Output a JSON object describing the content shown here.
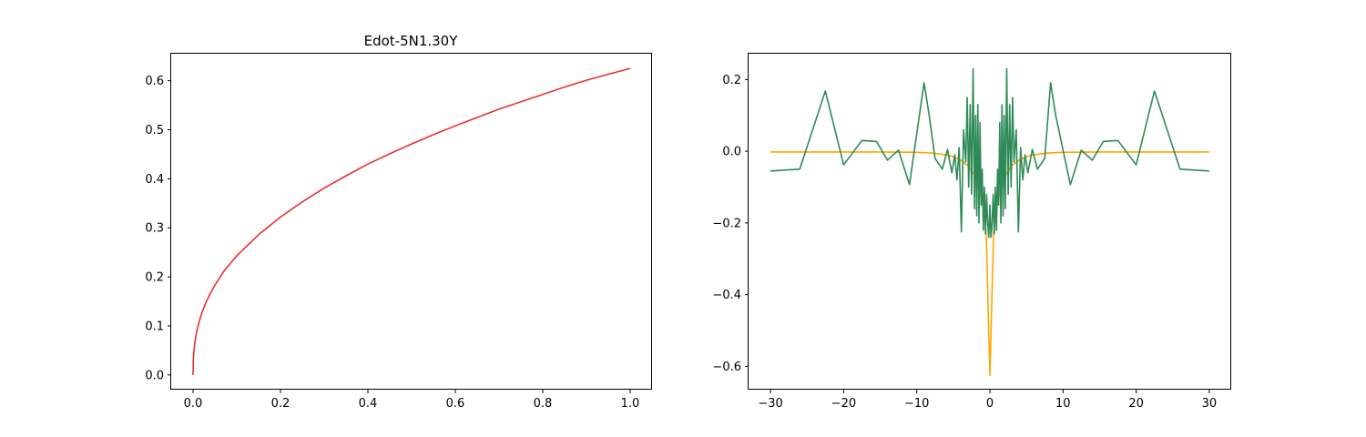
{
  "chart_data": [
    {
      "type": "line",
      "title": "Edot-5N1.30Y",
      "xlabel": "",
      "ylabel": "",
      "xlim": [
        -0.05,
        1.05
      ],
      "ylim": [
        -0.03,
        0.655
      ],
      "xticks": [
        "0.0",
        "0.2",
        "0.4",
        "0.6",
        "0.8",
        "1.0"
      ],
      "yticks": [
        "0.0",
        "0.1",
        "0.2",
        "0.3",
        "0.4",
        "0.5",
        "0.6"
      ],
      "grid": false,
      "series": [
        {
          "color": "#e8312f",
          "curve": "y = 0.625 * x^0.41",
          "x": [
            0,
            0.0005,
            0.001,
            0.002,
            0.004,
            0.006,
            0.01,
            0.015,
            0.02,
            0.03,
            0.04,
            0.05,
            0.07,
            0.1,
            0.15,
            0.2,
            0.25,
            0.3,
            0.35,
            0.4,
            0.45,
            0.5,
            0.55,
            0.6,
            0.65,
            0.7,
            0.75,
            0.8,
            0.85,
            0.9,
            0.95,
            1.0
          ],
          "y": [
            0,
            0.028,
            0.037,
            0.049,
            0.065,
            0.077,
            0.095,
            0.112,
            0.126,
            0.149,
            0.167,
            0.183,
            0.211,
            0.243,
            0.286,
            0.322,
            0.353,
            0.381,
            0.406,
            0.43,
            0.451,
            0.471,
            0.49,
            0.508,
            0.525,
            0.542,
            0.557,
            0.572,
            0.587,
            0.601,
            0.613,
            0.625
          ]
        }
      ]
    },
    {
      "type": "line",
      "title": "",
      "xlabel": "",
      "ylabel": "",
      "xlim": [
        -33,
        33
      ],
      "ylim": [
        -0.665,
        0.272
      ],
      "xticks": [
        "−30",
        "−20",
        "−10",
        "0",
        "10",
        "20",
        "30"
      ],
      "yticks": [
        "−0.6",
        "−0.4",
        "−0.2",
        "0.0",
        "0.2"
      ],
      "grid": false,
      "series": [
        {
          "color": "#ffa500",
          "x": [
            -30,
            -25,
            -20,
            -15,
            -10,
            -8,
            -6,
            -5,
            -4,
            -3,
            -2,
            -1.5,
            -1,
            -0.5,
            0,
            0.5,
            1,
            1.5,
            2,
            3,
            4,
            5,
            6,
            8,
            10,
            15,
            20,
            25,
            30
          ],
          "y": [
            -0.002,
            -0.002,
            -0.002,
            -0.002,
            -0.003,
            -0.005,
            -0.01,
            -0.015,
            -0.025,
            -0.04,
            -0.07,
            -0.1,
            -0.15,
            -0.23,
            -0.625,
            -0.23,
            -0.15,
            -0.1,
            -0.07,
            -0.04,
            -0.025,
            -0.015,
            -0.01,
            -0.005,
            -0.003,
            -0.002,
            -0.002,
            -0.002,
            -0.002
          ]
        },
        {
          "color": "#2e8b57",
          "x": [
            -30,
            -26,
            -22.5,
            -20,
            -17.5,
            -15.5,
            -14,
            -12.5,
            -11,
            -9,
            -8.3,
            -7.5,
            -6.5,
            -5.8,
            -5.2,
            -4.8,
            -4.5,
            -4.2,
            -3.9,
            -3.6,
            -3.3,
            -3.1,
            -2.9,
            -2.7,
            -2.5,
            -2.3,
            -2.1,
            -1.95,
            -1.8,
            -1.65,
            -1.5,
            -1.35,
            -1.2,
            -1.05,
            -0.9,
            -0.75,
            -0.6,
            -0.45,
            -0.3,
            -0.15,
            0,
            0.15,
            0.3,
            0.45,
            0.6,
            0.75,
            0.9,
            1.05,
            1.2,
            1.35,
            1.5,
            1.65,
            1.8,
            1.95,
            2.1,
            2.3,
            2.5,
            2.7,
            2.9,
            3.1,
            3.3,
            3.6,
            3.9,
            4.2,
            4.5,
            4.8,
            5.2,
            5.8,
            6.5,
            7.5,
            8.3,
            9,
            11,
            12.5,
            14,
            15.5,
            17.5,
            20,
            22.5,
            26,
            30
          ],
          "y": [
            -0.055,
            -0.05,
            0.168,
            -0.038,
            0.03,
            0.027,
            -0.025,
            0.003,
            -0.093,
            0.191,
            0.1,
            -0.02,
            -0.05,
            0.005,
            -0.06,
            -0.01,
            -0.08,
            0.01,
            -0.225,
            0.06,
            -0.03,
            0.15,
            -0.1,
            0.13,
            -0.12,
            0.23,
            -0.16,
            0.1,
            -0.18,
            0.13,
            -0.2,
            0.08,
            -0.15,
            -0.05,
            -0.22,
            -0.1,
            -0.23,
            -0.12,
            -0.2,
            -0.24,
            -0.15,
            -0.24,
            -0.2,
            -0.12,
            -0.23,
            -0.1,
            -0.22,
            -0.05,
            -0.15,
            0.08,
            -0.2,
            0.13,
            -0.18,
            0.1,
            -0.16,
            0.23,
            -0.12,
            0.13,
            -0.1,
            0.15,
            -0.03,
            0.06,
            -0.225,
            0.01,
            -0.08,
            -0.01,
            -0.06,
            0.005,
            -0.05,
            -0.02,
            0.191,
            0.1,
            -0.093,
            0.003,
            -0.025,
            0.027,
            0.03,
            -0.038,
            0.168,
            -0.05,
            -0.055
          ]
        }
      ]
    }
  ]
}
